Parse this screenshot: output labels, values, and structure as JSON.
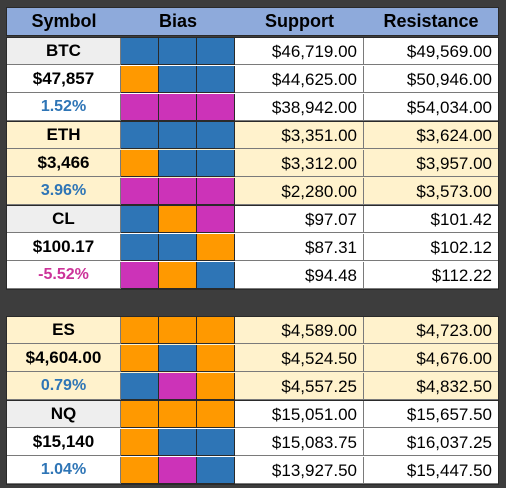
{
  "colors": {
    "header_bg": "#8eaadb",
    "white_bg": "#ffffff",
    "gray_bg": "#eeeeee",
    "cream_bg": "#fff2cc",
    "orange": "#ff9900",
    "blue": "#2e75b6",
    "magenta": "#cc33b8",
    "positive_text": "#2e75b6",
    "negative_text": "#cc3399"
  },
  "header": {
    "symbol": "Symbol",
    "bias": "Bias",
    "support": "Support",
    "resistance": "Resistance"
  },
  "groups": [
    {
      "bg": "white",
      "rows": [
        {
          "label": "BTC",
          "bias": [
            "blue",
            "blue",
            "blue"
          ],
          "support": "$46,719.00",
          "resistance": "$49,569.00"
        },
        {
          "label": "$47,857",
          "bias": [
            "orange",
            "blue",
            "blue"
          ],
          "support": "$44,625.00",
          "resistance": "$50,946.00"
        },
        {
          "label": "1.52%",
          "label_color": "positive",
          "bias": [
            "magenta",
            "magenta",
            "magenta"
          ],
          "support": "$38,942.00",
          "resistance": "$54,034.00"
        }
      ]
    },
    {
      "bg": "cream",
      "rows": [
        {
          "label": "ETH",
          "bias": [
            "blue",
            "blue",
            "blue"
          ],
          "support": "$3,351.00",
          "resistance": "$3,624.00"
        },
        {
          "label": "$3,466",
          "bias": [
            "orange",
            "blue",
            "blue"
          ],
          "support": "$3,312.00",
          "resistance": "$3,957.00"
        },
        {
          "label": "3.96%",
          "label_color": "positive",
          "bias": [
            "magenta",
            "magenta",
            "magenta"
          ],
          "support": "$2,280.00",
          "resistance": "$3,573.00"
        }
      ]
    },
    {
      "bg": "white",
      "rows": [
        {
          "label": "CL",
          "bias": [
            "blue",
            "orange",
            "magenta"
          ],
          "support": "$97.07",
          "resistance": "$101.42"
        },
        {
          "label": "$100.17",
          "bias": [
            "blue",
            "blue",
            "orange"
          ],
          "support": "$87.31",
          "resistance": "$102.12"
        },
        {
          "label": "-5.52%",
          "label_color": "negative",
          "bias": [
            "magenta",
            "orange",
            "blue"
          ],
          "support": "$94.48",
          "resistance": "$112.22"
        }
      ]
    },
    {
      "bg": "cream",
      "rows": [
        {
          "label": "ES",
          "bias": [
            "orange",
            "orange",
            "orange"
          ],
          "support": "$4,589.00",
          "resistance": "$4,723.00"
        },
        {
          "label": "$4,604.00",
          "bias": [
            "orange",
            "blue",
            "orange"
          ],
          "support": "$4,524.50",
          "resistance": "$4,676.00"
        },
        {
          "label": "0.79%",
          "label_color": "positive",
          "bias": [
            "blue",
            "magenta",
            "orange"
          ],
          "support": "$4,557.25",
          "resistance": "$4,832.50"
        }
      ]
    },
    {
      "bg": "white",
      "rows": [
        {
          "label": "NQ",
          "bias": [
            "orange",
            "orange",
            "orange"
          ],
          "support": "$15,051.00",
          "resistance": "$15,657.50"
        },
        {
          "label": "$15,140",
          "bias": [
            "orange",
            "blue",
            "blue"
          ],
          "support": "$15,083.75",
          "resistance": "$16,037.25"
        },
        {
          "label": "1.04%",
          "label_color": "positive",
          "bias": [
            "orange",
            "magenta",
            "blue"
          ],
          "support": "$13,927.50",
          "resistance": "$15,447.50"
        }
      ]
    }
  ]
}
